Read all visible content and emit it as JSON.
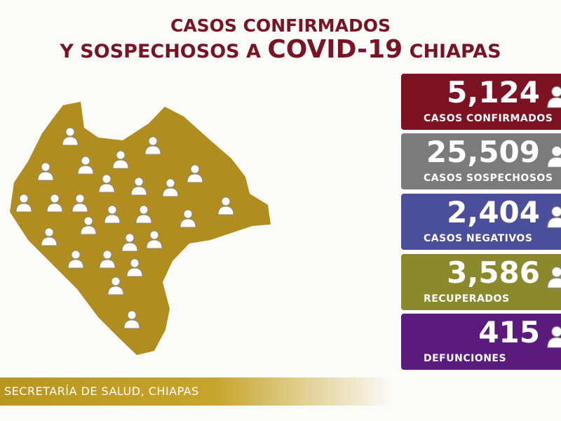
{
  "header": {
    "line1": "CASOS CONFIRMADOS",
    "line2": [
      "Y SOSPECHOSOS A",
      "COVID-19",
      "CHIAPAS"
    ]
  },
  "cards": [
    {
      "value": "5,124",
      "label": "CASOS CONFIRMADOS"
    },
    {
      "value": "25,509",
      "label": "CASOS SOSPECHOSOS"
    },
    {
      "value": "2,404",
      "label": "CASOS NEGATIVOS"
    },
    {
      "value": "3,586",
      "label": "RECUPERADOS"
    },
    {
      "value": "415",
      "label": "DEFUNCIONES"
    }
  ],
  "footer": {
    "source": "SECRETARÍA DE SALUD, CHIAPAS"
  }
}
